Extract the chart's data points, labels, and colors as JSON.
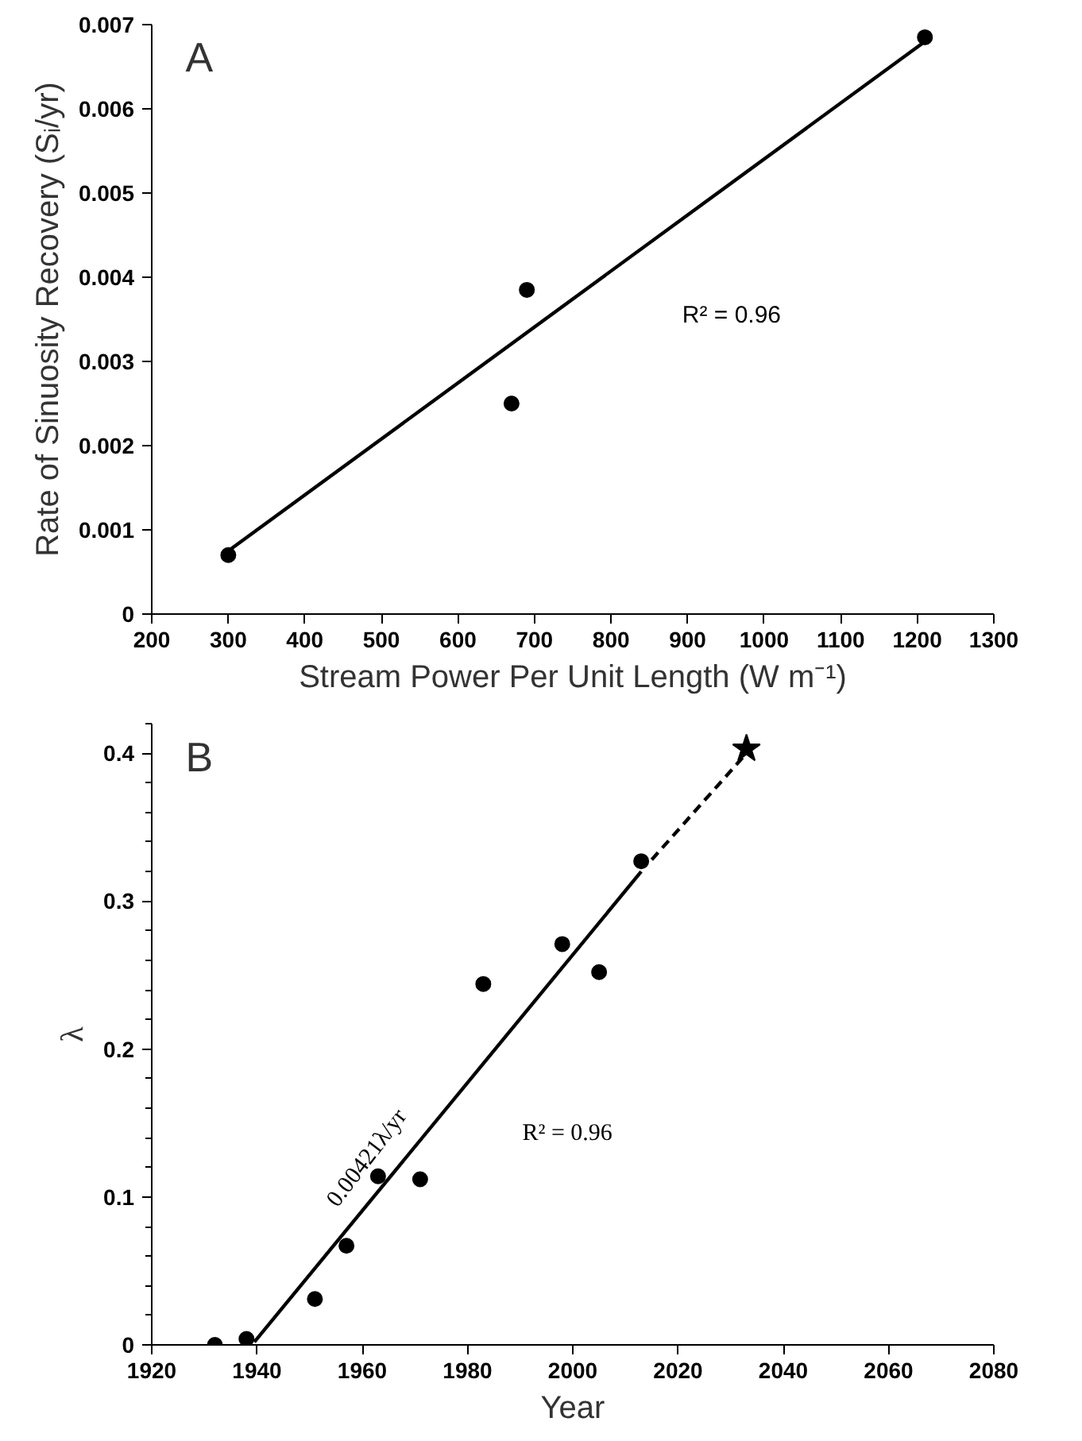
{
  "chart_data": [
    {
      "type": "scatter",
      "xlabel": "Stream Power Per Unit Length (W m⁻¹)",
      "ylabel": "Rate of Sinuosity Recovery (Sᵢ/yr)",
      "xlim": [
        200,
        1300
      ],
      "xticks": [
        200,
        300,
        400,
        500,
        600,
        700,
        800,
        900,
        1000,
        1100,
        1200,
        1300
      ],
      "ylim": [
        0,
        0.007
      ],
      "yticks": [
        0,
        0.001,
        0.002,
        0.003,
        0.004,
        0.005,
        0.006,
        0.007
      ],
      "grid": false,
      "annotations": [
        "A",
        "R² = 0.96"
      ],
      "series": [
        {
          "color": "#000000",
          "marker": "circle",
          "x": [
            300,
            670,
            690,
            1210
          ],
          "values": [
            0.0007,
            0.0025,
            0.00385,
            0.00685
          ]
        },
        {
          "type": "line",
          "color": "#000000",
          "line_style": "solid",
          "x": [
            300,
            1210
          ],
          "values": [
            0.00075,
            0.0068
          ]
        }
      ]
    },
    {
      "type": "scatter",
      "xlabel": "Year",
      "ylabel": "λ",
      "xlim": [
        1920,
        2080
      ],
      "xticks": [
        1920,
        1940,
        1960,
        1980,
        2000,
        2020,
        2040,
        2060,
        2080
      ],
      "ylim": [
        0,
        0.42
      ],
      "yticks": [
        0,
        {
          "value": 0.02,
          "label": null
        },
        {
          "value": 0.04,
          "label": null
        },
        {
          "value": 0.06,
          "label": null
        },
        {
          "value": 0.08,
          "label": null
        },
        0.1,
        {
          "value": 0.12,
          "label": null
        },
        {
          "value": 0.14,
          "label": null
        },
        {
          "value": 0.16,
          "label": null
        },
        {
          "value": 0.18,
          "label": null
        },
        0.2,
        {
          "value": 0.22,
          "label": null
        },
        {
          "value": 0.24,
          "label": null
        },
        {
          "value": 0.26,
          "label": null
        },
        {
          "value": 0.28,
          "label": null
        },
        0.3,
        {
          "value": 0.32,
          "label": null
        },
        {
          "value": 0.34,
          "label": null
        },
        {
          "value": 0.36,
          "label": null
        },
        {
          "value": 0.38,
          "label": null
        },
        0.4,
        {
          "value": 0.42,
          "label": null
        }
      ],
      "grid": false,
      "annotations": [
        "B",
        "R² = 0.96",
        "0.00421λ/yr"
      ],
      "series": [
        {
          "color": "#000000",
          "marker": "circle",
          "x": [
            1932,
            1938,
            1951,
            1957,
            1963,
            1971,
            1983,
            1998,
            2005,
            2013
          ],
          "values": [
            0,
            0.004,
            0.031,
            0.067,
            0.114,
            0.112,
            0.244,
            0.271,
            0.252,
            0.327
          ]
        },
        {
          "color": "#000000",
          "marker": "star",
          "x": [
            2033
          ],
          "values": [
            0.403
          ]
        },
        {
          "type": "line",
          "color": "#000000",
          "line_style": "solid",
          "x": [
            1939.5,
            2013
          ],
          "values": [
            0.002,
            0.32
          ]
        },
        {
          "type": "line",
          "color": "#000000",
          "line_style": "dashed",
          "x": [
            2015,
            2033
          ],
          "values": [
            0.328,
            0.4
          ]
        }
      ]
    }
  ]
}
